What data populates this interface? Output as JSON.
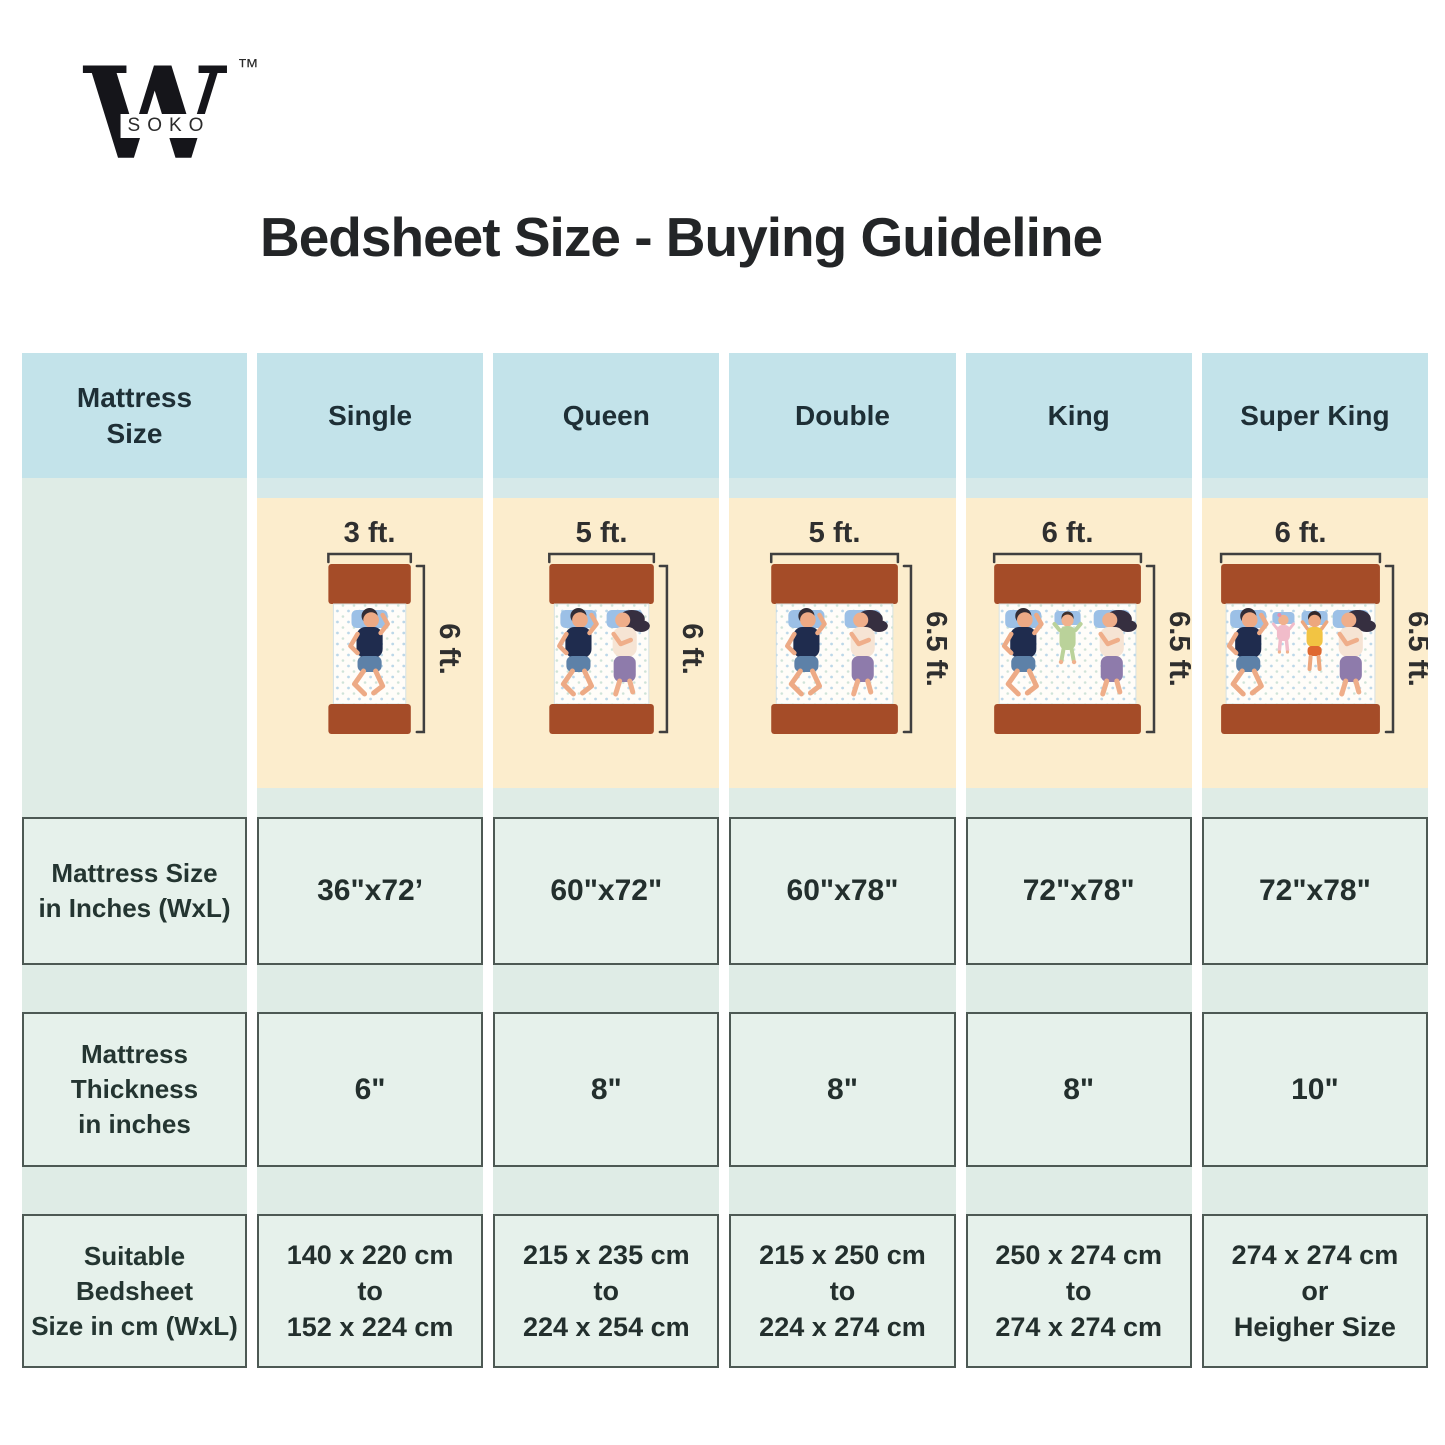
{
  "brand": {
    "logo_letter": "W",
    "logo_sub": "SOKO",
    "trademark": "™"
  },
  "title": "Bedsheet Size - Buying Guideline",
  "table": {
    "corner_lines": [
      "Mattress",
      "Size"
    ],
    "row_labels": {
      "inches_lines": [
        "Mattress Size",
        "in Inches (WxL)"
      ],
      "thickness_lines": [
        "Mattress",
        "Thickness",
        "in inches"
      ],
      "bedsheet_lines": [
        "Suitable",
        "Bedsheet",
        "Size in cm (WxL)"
      ]
    },
    "columns": [
      {
        "name": "Single",
        "width_label": "3 ft.",
        "length_label": "6 ft.",
        "occupants": [
          "man"
        ],
        "size_inches": "36\"x72’",
        "thickness": "6\"",
        "bedsheet": [
          "140 x 220 cm",
          "to",
          "152 x 224 cm"
        ]
      },
      {
        "name": "Queen",
        "width_label": "5 ft.",
        "length_label": "6 ft.",
        "occupants": [
          "man",
          "woman"
        ],
        "size_inches": "60\"x72\"",
        "thickness": "8\"",
        "bedsheet": [
          "215 x 235 cm",
          "to",
          "224 x 254 cm"
        ]
      },
      {
        "name": "Double",
        "width_label": "5 ft.",
        "length_label": "6.5 ft.",
        "occupants": [
          "man",
          "woman"
        ],
        "size_inches": "60\"x78\"",
        "thickness": "8\"",
        "bedsheet": [
          "215 x 250 cm",
          "to",
          "224 x 274 cm"
        ]
      },
      {
        "name": "King",
        "width_label": "6 ft.",
        "length_label": "6.5 ft.",
        "occupants": [
          "man",
          "child-green",
          "woman"
        ],
        "size_inches": "72\"x78\"",
        "thickness": "8\"",
        "bedsheet": [
          "250 x 274 cm",
          "to",
          "274 x 274 cm"
        ]
      },
      {
        "name": "Super King",
        "width_label": "6 ft.",
        "length_label": "6.5 ft.",
        "occupants": [
          "man",
          "baby",
          "child-yellow",
          "woman"
        ],
        "size_inches": "72\"x78\"",
        "thickness": "10\"",
        "bedsheet": [
          "274 x 274 cm",
          "or",
          "Heigher Size"
        ]
      }
    ]
  },
  "colors": {
    "header_bg": "#c3e3ea",
    "strip_bg": "#dfece6",
    "cell_bg": "#e6f1eb",
    "cream_bg": "#fcedcd",
    "border": "#4d5954",
    "bed_frame": "#a54c28",
    "pillow": "#9cc0e6",
    "title_text": "#232527"
  }
}
